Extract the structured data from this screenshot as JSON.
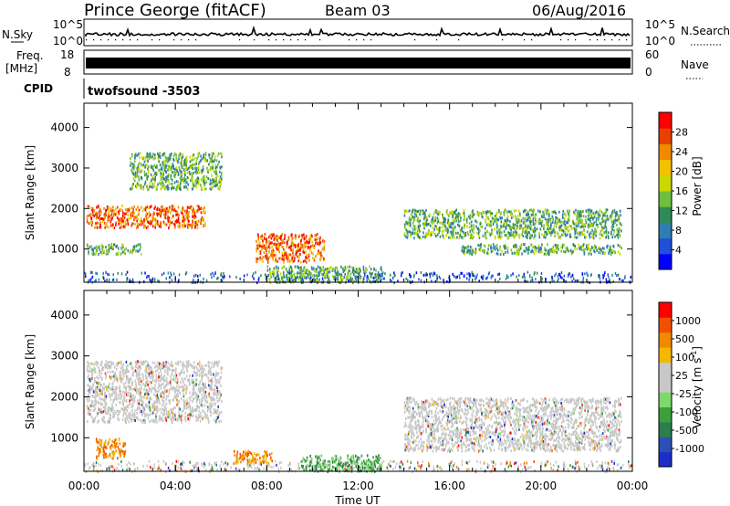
{
  "header": {
    "title": "Prince George (fitACF)",
    "beam": "Beam 03",
    "date": "06/Aug/2016"
  },
  "top_panels": {
    "nsky_label": "N.Sky",
    "nsky_ticks": [
      "10^5",
      "10^0"
    ],
    "nsearch_label": "N.Search",
    "nsearch_ticks": [
      "10^5",
      "10^0"
    ],
    "freq_label_1": "Freq.",
    "freq_label_2": "[MHz]",
    "freq_ticks": [
      "18",
      "8"
    ],
    "nave_label": "Nave",
    "nave_ticks": [
      "60",
      "0"
    ],
    "cpid_label": "CPID",
    "cpid_value": "twofsound -3503"
  },
  "chart_data": [
    {
      "type": "heatmap",
      "name": "power",
      "ylabel": "Slant Range [km]",
      "xlabel": "",
      "x_ticks": [
        "00:00",
        "04:00",
        "08:00",
        "12:00",
        "16:00",
        "20:00",
        "00:00"
      ],
      "x_range_hours": [
        0,
        24
      ],
      "y_ticks": [
        1000,
        2000,
        3000,
        4000
      ],
      "y_range_km": [
        180,
        4600
      ],
      "colorbar": {
        "label": "Power [dB]",
        "ticks": [
          "4",
          "8",
          "12",
          "16",
          "20",
          "24",
          "28"
        ],
        "colors": [
          "#0000ff",
          "#2050d8",
          "#2e7fb0",
          "#2e8b57",
          "#6fbf3f",
          "#c8d800",
          "#f2c100",
          "#f08a00",
          "#e84000",
          "#ff0000"
        ]
      },
      "features": [
        {
          "hours": [
            0.1,
            5.3
          ],
          "range_km": [
            1550,
            2100
          ],
          "level": "high"
        },
        {
          "hours": [
            0.1,
            2.5
          ],
          "range_km": [
            900,
            1150
          ],
          "level": "medium"
        },
        {
          "hours": [
            2.0,
            6.0
          ],
          "range_km": [
            2500,
            3400
          ],
          "level": "medium"
        },
        {
          "hours": [
            7.5,
            10.5
          ],
          "range_km": [
            700,
            1400
          ],
          "level": "high"
        },
        {
          "hours": [
            8.0,
            13.0
          ],
          "range_km": [
            200,
            600
          ],
          "level": "medium"
        },
        {
          "hours": [
            14.0,
            23.5
          ],
          "range_km": [
            1300,
            2000
          ],
          "level": "medium"
        },
        {
          "hours": [
            16.5,
            23.5
          ],
          "range_km": [
            900,
            1150
          ],
          "level": "medium"
        }
      ]
    },
    {
      "type": "heatmap",
      "name": "velocity",
      "ylabel": "Slant Range [km]",
      "xlabel": "Time UT",
      "x_ticks": [
        "00:00",
        "04:00",
        "08:00",
        "12:00",
        "16:00",
        "20:00",
        "00:00"
      ],
      "x_range_hours": [
        0,
        24
      ],
      "y_ticks": [
        1000,
        2000,
        3000,
        4000
      ],
      "y_range_km": [
        180,
        4600
      ],
      "colorbar": {
        "label": "Velocity [m s",
        "label_sup": "-1",
        "label_end": "]",
        "ticks": [
          "1000",
          "500",
          "100",
          "25",
          "-25",
          "-100",
          "-500",
          "-1000"
        ],
        "colors": [
          "#1c2ec8",
          "#2b4fb5",
          "#2e7d4f",
          "#3aa13a",
          "#7fd86a",
          "#c8c8c8",
          "#c8c8c8",
          "#f5b800",
          "#f08a00",
          "#f05000",
          "#ff0000"
        ]
      },
      "features": [
        {
          "hours": [
            0.1,
            6.0
          ],
          "range_km": [
            1400,
            2900
          ],
          "level": "ground"
        },
        {
          "hours": [
            0.5,
            1.8
          ],
          "range_km": [
            500,
            1000
          ],
          "level": "away"
        },
        {
          "hours": [
            6.5,
            8.3
          ],
          "range_km": [
            400,
            700
          ],
          "level": "away"
        },
        {
          "hours": [
            9.5,
            13.0
          ],
          "range_km": [
            200,
            600
          ],
          "level": "toward"
        },
        {
          "hours": [
            14.0,
            23.5
          ],
          "range_km": [
            700,
            2000
          ],
          "level": "ground"
        }
      ]
    }
  ]
}
